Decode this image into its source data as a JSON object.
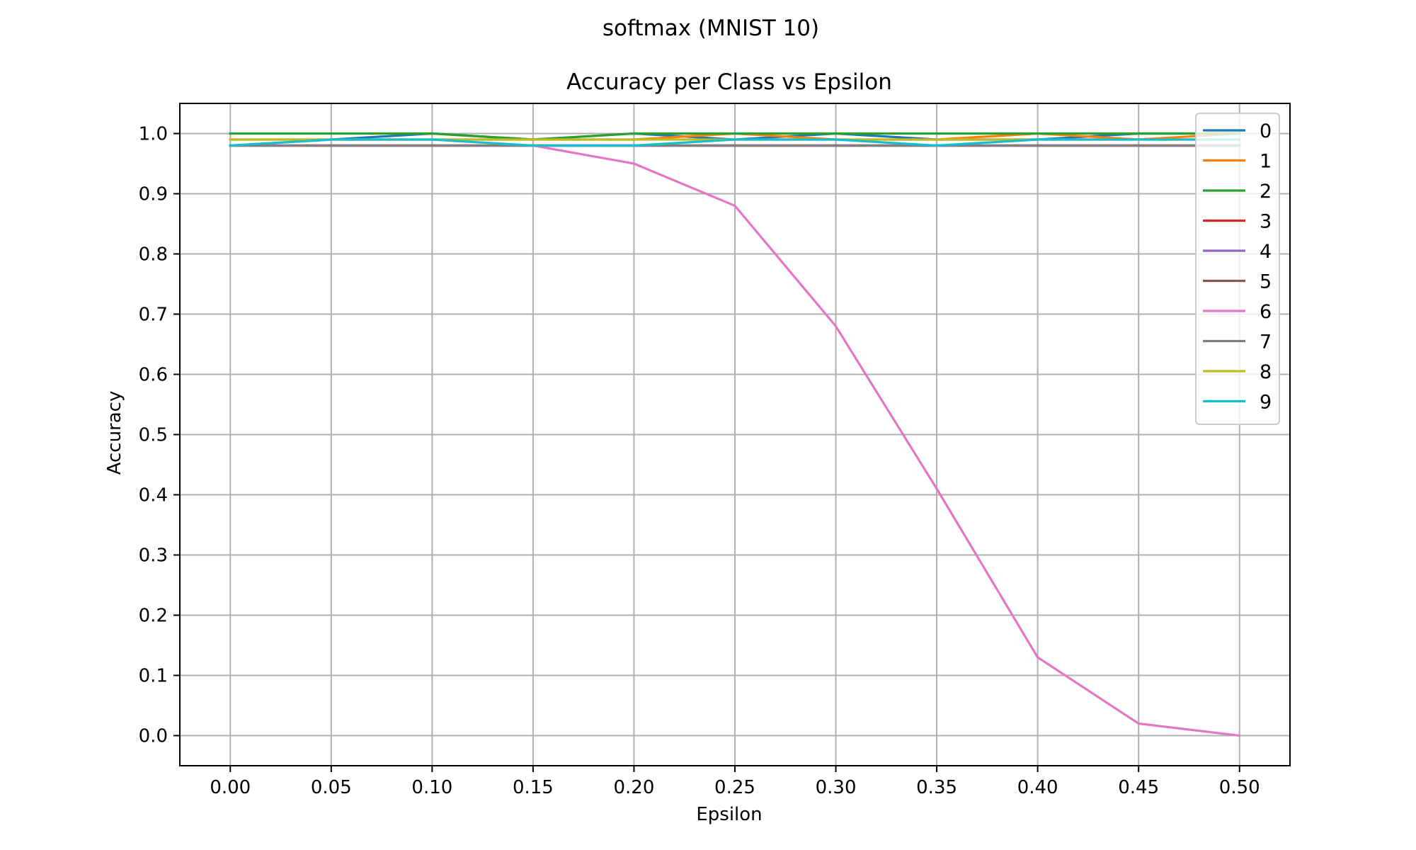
{
  "figure": {
    "suptitle": "softmax (MNIST 10)"
  },
  "chart_data": {
    "type": "line",
    "title": "Accuracy per Class vs Epsilon",
    "xlabel": "Epsilon",
    "ylabel": "Accuracy",
    "xlim": [
      -0.025,
      0.525
    ],
    "ylim": [
      -0.05,
      1.05
    ],
    "grid": true,
    "legend_position": "upper right",
    "x": [
      0.0,
      0.05,
      0.1,
      0.15,
      0.2,
      0.25,
      0.3,
      0.35,
      0.4,
      0.45,
      0.5
    ],
    "x_tick_labels": [
      "0.00",
      "0.05",
      "0.10",
      "0.15",
      "0.20",
      "0.25",
      "0.30",
      "0.35",
      "0.40",
      "0.45",
      "0.50"
    ],
    "y_ticks": [
      0.0,
      0.1,
      0.2,
      0.3,
      0.4,
      0.5,
      0.6,
      0.7,
      0.8,
      0.9,
      1.0
    ],
    "y_tick_labels": [
      "0.0",
      "0.1",
      "0.2",
      "0.3",
      "0.4",
      "0.5",
      "0.6",
      "0.7",
      "0.8",
      "0.9",
      "1.0"
    ],
    "series": [
      {
        "name": "0",
        "color": "#1f77b4",
        "values": [
          0.98,
          0.99,
          1.0,
          0.99,
          1.0,
          0.99,
          1.0,
          0.99,
          0.99,
          1.0,
          1.0
        ]
      },
      {
        "name": "1",
        "color": "#ff7f0e",
        "values": [
          0.99,
          0.99,
          0.99,
          0.99,
          0.99,
          1.0,
          0.99,
          0.99,
          1.0,
          0.99,
          1.0
        ]
      },
      {
        "name": "2",
        "color": "#2ca02c",
        "values": [
          1.0,
          1.0,
          1.0,
          0.99,
          1.0,
          1.0,
          1.0,
          1.0,
          1.0,
          1.0,
          1.0
        ]
      },
      {
        "name": "3",
        "color": "#d62728",
        "values": [
          0.98,
          0.98,
          0.98,
          0.98,
          0.98,
          0.98,
          0.98,
          0.98,
          0.98,
          0.98,
          0.98
        ]
      },
      {
        "name": "4",
        "color": "#9467bd",
        "values": [
          0.98,
          0.98,
          0.98,
          0.98,
          0.98,
          0.98,
          0.98,
          0.98,
          0.98,
          0.98,
          0.98
        ]
      },
      {
        "name": "5",
        "color": "#8c564b",
        "values": [
          0.98,
          0.98,
          0.98,
          0.98,
          0.98,
          0.98,
          0.98,
          0.98,
          0.98,
          0.98,
          0.98
        ]
      },
      {
        "name": "6",
        "color": "#e377c2",
        "values": [
          0.98,
          0.98,
          0.98,
          0.98,
          0.95,
          0.88,
          0.68,
          0.41,
          0.13,
          0.02,
          0.0
        ]
      },
      {
        "name": "7",
        "color": "#7f7f7f",
        "values": [
          0.98,
          0.98,
          0.98,
          0.98,
          0.98,
          0.98,
          0.98,
          0.98,
          0.98,
          0.98,
          0.98
        ]
      },
      {
        "name": "8",
        "color": "#bcbd22",
        "values": [
          0.99,
          0.99,
          0.99,
          0.99,
          0.99,
          0.99,
          0.99,
          0.99,
          0.99,
          0.99,
          0.99
        ]
      },
      {
        "name": "9",
        "color": "#17becf",
        "values": [
          0.98,
          0.99,
          0.99,
          0.98,
          0.98,
          0.99,
          0.99,
          0.98,
          0.99,
          0.99,
          0.99
        ]
      }
    ]
  }
}
